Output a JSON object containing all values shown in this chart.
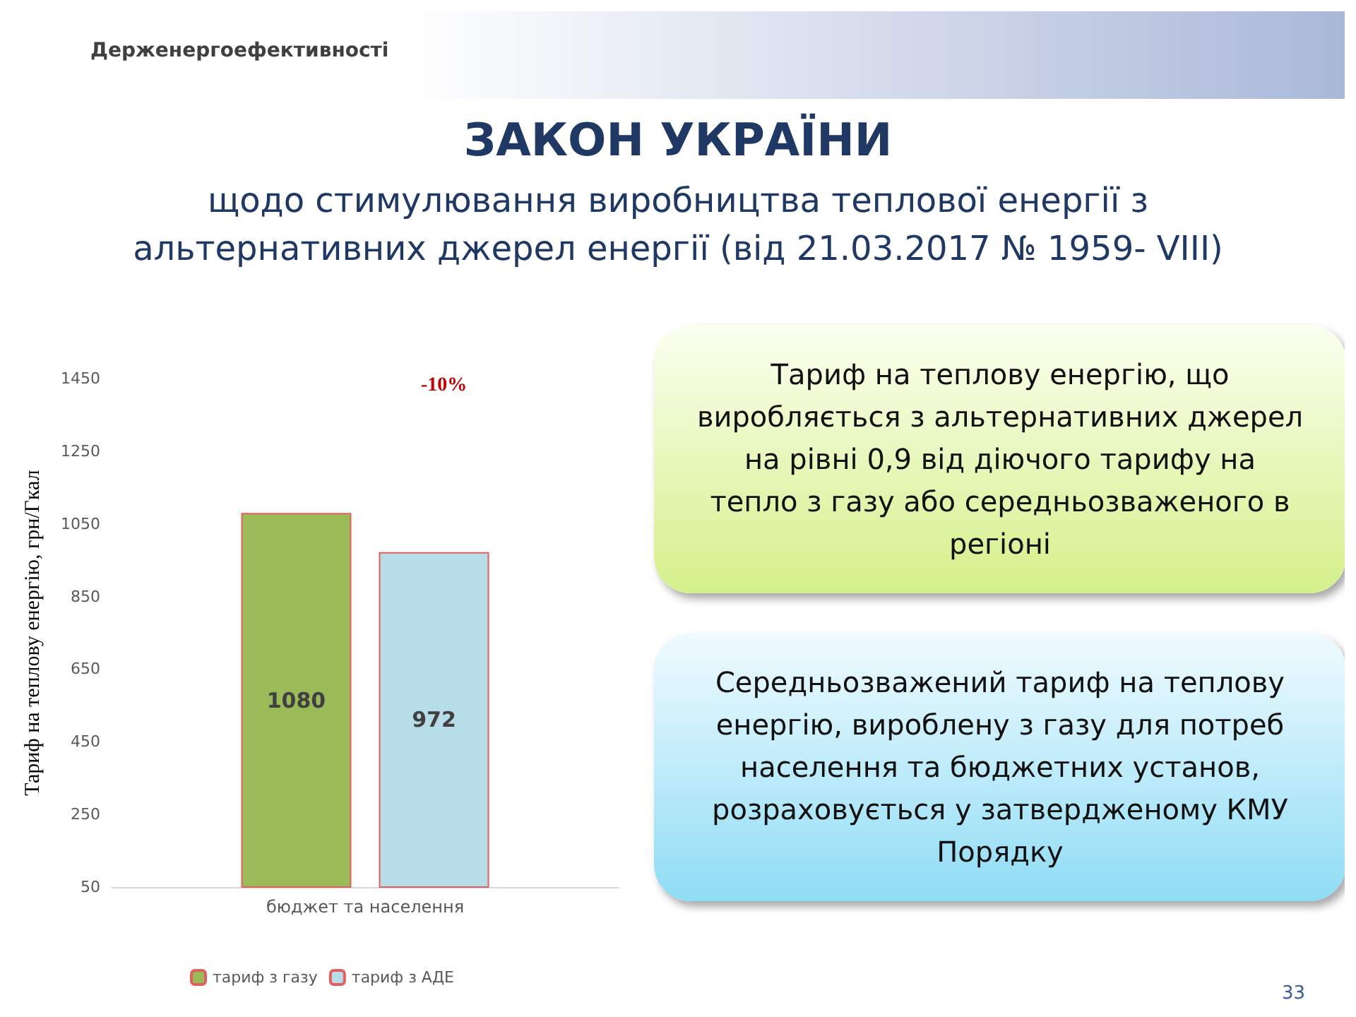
{
  "chart_data": {
    "type": "bar",
    "title": "ЗАКОН УКРАЇНИ",
    "subtitle": "щодо стимулювання виробництва теплової енергії з альтернативних джерел енергії (від 21.03.2017 № 1959- VIII)",
    "ylabel": "Тариф на теплову енергію, грн/Гкал",
    "categories": [
      "бюджет та населення"
    ],
    "series": [
      {
        "name": "тариф з газу",
        "color": "#9bbb59",
        "values": [
          1080
        ]
      },
      {
        "name": "тариф з АДЕ",
        "color": "#b7dee8",
        "values": [
          972
        ]
      }
    ],
    "ylim": [
      50,
      1450
    ],
    "yticks": [
      50,
      250,
      450,
      650,
      850,
      1050,
      1250,
      1450
    ],
    "data_labels": true,
    "legend": "bottom",
    "annotations": [
      "-10%",
      "Тариф на теплову енергію, що виробляється з альтернативних джерел на рівні 0,9 від діючого тарифу на тепло з газу або середньозваженого   в регіоні",
      "Середньозважений тариф на теплову енергію, вироблену з газу для потреб населення та бюджетних установ, розраховується у затвердженому КМУ Порядку",
      "33",
      "Держенергоефективності"
    ]
  }
}
